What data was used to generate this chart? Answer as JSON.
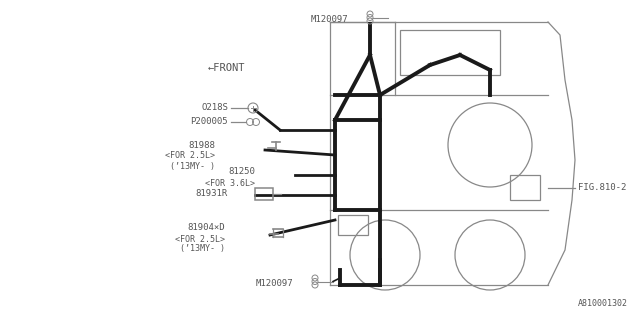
{
  "bg_color": "#ffffff",
  "line_color": "#1a1a1a",
  "gray_color": "#888888",
  "text_color": "#555555",
  "fig_width": 6.4,
  "fig_height": 3.2,
  "dpi": 100,
  "labels": {
    "M120097_top": "M120097",
    "FRONT": "←FRONT",
    "O218S": "O218S",
    "P200005": "P200005",
    "81988": "81988",
    "FOR_25L_1": "<FOR 2.5L>",
    "13MY_1": "(’13MY- )",
    "81250": "81250",
    "FOR_36L": "<FOR 3.6L>",
    "81931R": "81931R",
    "81904xD": "81904×D",
    "FOR_25L_2": "<FOR 2.5L>",
    "13MY_2": "(’13MY- )",
    "M120097_bot": "M120097",
    "FIG810_2": "FIG.810-2",
    "A810001302": "A810001302"
  }
}
